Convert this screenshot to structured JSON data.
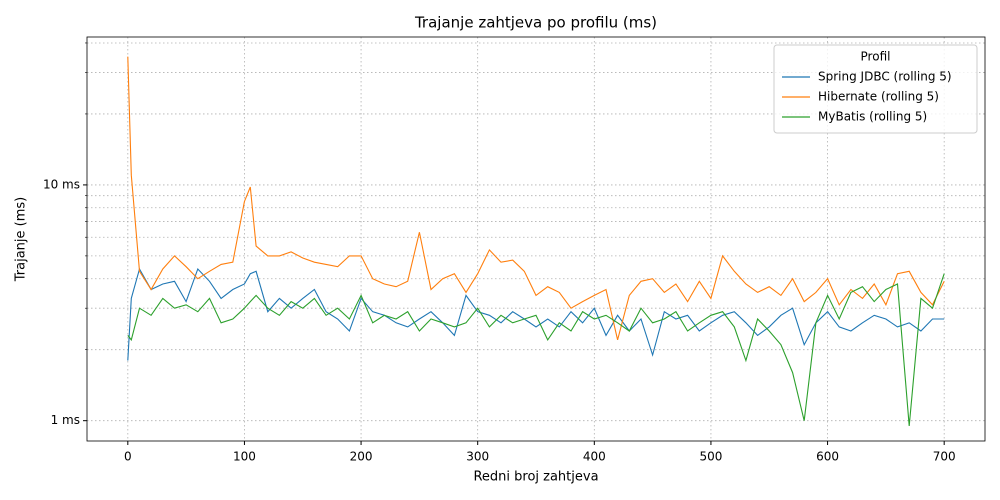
{
  "chart_data": {
    "type": "line",
    "title": "Trajanje zahtjeva po profilu (ms)",
    "x_label": "Redni broj zahtjeva",
    "y_label": "Trajanje (ms)",
    "y_scale": "log",
    "grid": true,
    "legend_title": "Profil",
    "legend_position": "upper-right",
    "xlim": [
      -35,
      735
    ],
    "xticks": [
      0,
      100,
      200,
      300,
      400,
      500,
      600,
      700
    ],
    "ylim": [
      0.82,
      42.4
    ],
    "yticks": [
      {
        "value": 1,
        "label": "1 ms"
      },
      {
        "value": 10,
        "label": "10 ms"
      }
    ],
    "yminorticks": [
      2,
      3,
      4,
      5,
      6,
      7,
      8,
      9,
      20,
      30,
      40
    ],
    "x": [
      0,
      3,
      10,
      20,
      30,
      40,
      50,
      60,
      70,
      80,
      90,
      100,
      105,
      110,
      120,
      130,
      140,
      150,
      160,
      170,
      180,
      190,
      200,
      210,
      220,
      230,
      240,
      250,
      260,
      270,
      280,
      290,
      300,
      310,
      320,
      330,
      340,
      350,
      360,
      370,
      380,
      390,
      400,
      410,
      420,
      430,
      440,
      450,
      460,
      470,
      480,
      490,
      500,
      510,
      520,
      530,
      540,
      550,
      560,
      570,
      580,
      590,
      600,
      610,
      620,
      630,
      640,
      650,
      660,
      670,
      680,
      690,
      700
    ],
    "series": [
      {
        "name": "Spring JDBC (rolling 5)",
        "color": "#1f77b4",
        "values": [
          1.8,
          3.3,
          4.4,
          3.6,
          3.8,
          3.9,
          3.2,
          4.4,
          3.9,
          3.3,
          3.6,
          3.8,
          4.2,
          4.3,
          2.9,
          3.3,
          3.0,
          3.3,
          3.6,
          2.9,
          2.7,
          2.4,
          3.3,
          2.9,
          2.8,
          2.6,
          2.5,
          2.7,
          2.9,
          2.6,
          2.3,
          3.4,
          2.9,
          2.8,
          2.6,
          2.9,
          2.7,
          2.5,
          2.7,
          2.5,
          2.9,
          2.6,
          3.0,
          2.3,
          2.8,
          2.4,
          2.7,
          1.9,
          2.9,
          2.7,
          2.8,
          2.4,
          2.6,
          2.8,
          2.9,
          2.6,
          2.3,
          2.5,
          2.8,
          3.0,
          2.1,
          2.6,
          2.9,
          2.5,
          2.4,
          2.6,
          2.8,
          2.7,
          2.5,
          2.6,
          2.4,
          2.7,
          2.7
        ]
      },
      {
        "name": "Hibernate (rolling 5)",
        "color": "#ff7f0e",
        "values": [
          35,
          11,
          4.3,
          3.6,
          4.4,
          5.0,
          4.5,
          4.0,
          4.3,
          4.6,
          4.7,
          8.5,
          9.8,
          5.5,
          5.0,
          5.0,
          5.2,
          4.9,
          4.7,
          4.6,
          4.5,
          5.0,
          5.0,
          4.0,
          3.8,
          3.7,
          3.9,
          6.3,
          3.6,
          4.0,
          4.2,
          3.5,
          4.2,
          5.3,
          4.7,
          4.8,
          4.3,
          3.4,
          3.7,
          3.5,
          3.0,
          3.2,
          3.4,
          3.6,
          2.2,
          3.4,
          3.9,
          4.0,
          3.5,
          3.8,
          3.2,
          3.9,
          3.3,
          5.0,
          4.3,
          3.8,
          3.5,
          3.7,
          3.4,
          4.0,
          3.2,
          3.5,
          4.0,
          3.1,
          3.6,
          3.3,
          3.8,
          3.1,
          4.2,
          4.3,
          3.5,
          3.1,
          3.9
        ]
      },
      {
        "name": "MyBatis (rolling 5)",
        "color": "#2ca02c",
        "values": [
          2.3,
          2.2,
          3.0,
          2.8,
          3.3,
          3.0,
          3.1,
          2.9,
          3.3,
          2.6,
          2.7,
          3.0,
          3.2,
          3.4,
          3.0,
          2.8,
          3.2,
          3.0,
          3.3,
          2.8,
          3.0,
          2.7,
          3.4,
          2.6,
          2.8,
          2.7,
          2.9,
          2.4,
          2.7,
          2.6,
          2.5,
          2.6,
          3.0,
          2.5,
          2.8,
          2.6,
          2.7,
          2.8,
          2.2,
          2.6,
          2.4,
          2.9,
          2.7,
          2.8,
          2.6,
          2.4,
          3.0,
          2.6,
          2.7,
          2.9,
          2.4,
          2.6,
          2.8,
          2.9,
          2.5,
          1.8,
          2.7,
          2.4,
          2.1,
          1.6,
          1.0,
          2.6,
          3.4,
          2.7,
          3.5,
          3.7,
          3.2,
          3.6,
          3.8,
          0.95,
          3.3,
          3.0,
          4.2
        ]
      }
    ]
  }
}
